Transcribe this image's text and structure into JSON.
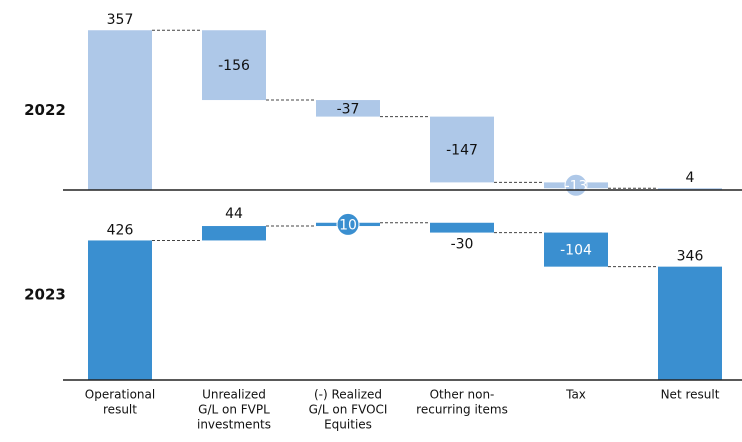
{
  "chart_data": [
    {
      "type": "waterfall",
      "title": "2022",
      "values": [
        357,
        -156,
        -37,
        -147,
        -13,
        4
      ],
      "color": "#aec8e8",
      "ylim": [
        0,
        400
      ]
    },
    {
      "type": "waterfall",
      "title": "2023",
      "values": [
        426,
        44,
        10,
        -30,
        -104,
        346
      ],
      "color": "#3a8fd0",
      "ylim": [
        0,
        580
      ],
      "categories": [
        [
          "Operational",
          "result"
        ],
        [
          "Unrealized",
          "G/L on FVPL",
          "investments"
        ],
        [
          "(-) Realized",
          "G/L on FVOCI",
          "Equities"
        ],
        [
          "Other non-",
          "recurring items"
        ],
        [
          "Tax"
        ],
        [
          "Net result"
        ]
      ]
    }
  ]
}
